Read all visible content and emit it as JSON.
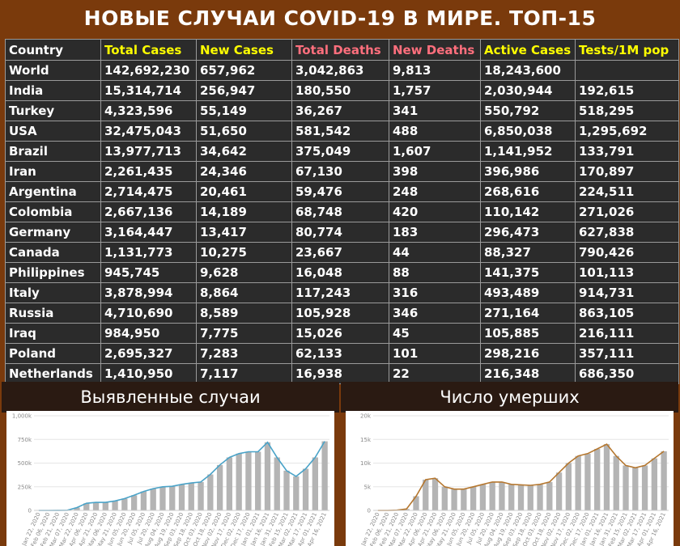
{
  "title": "НОВЫЕ СЛУЧАИ COVID-19 В МИРЕ. ТОП-15",
  "colors": {
    "background": "#7a3a0c",
    "table_bg": "#2b2b2b",
    "yellow_header": "#ffff00",
    "pink_header": "#ff6f7d",
    "bar": "#b4b4b4",
    "cases_line": "#4aa3c8",
    "deaths_line": "#b5772f"
  },
  "table": {
    "columns": [
      {
        "label": "Country",
        "color": "#ffffff"
      },
      {
        "label": "Total Cases",
        "color": "#ffff00"
      },
      {
        "label": "New Cases",
        "color": "#ffff00"
      },
      {
        "label": "Total Deaths",
        "color": "#ff6f7d"
      },
      {
        "label": "New Deaths",
        "color": "#ff6f7d"
      },
      {
        "label": "Active Cases",
        "color": "#ffff00"
      },
      {
        "label": "Tests/1M pop",
        "color": "#ffff00"
      }
    ],
    "rows": [
      [
        "World",
        "142,692,230",
        "657,962",
        "3,042,863",
        "9,813",
        "18,243,600",
        ""
      ],
      [
        "India",
        "15,314,714",
        "256,947",
        "180,550",
        "1,757",
        "2,030,944",
        "192,615"
      ],
      [
        "Turkey",
        "4,323,596",
        "55,149",
        "36,267",
        "341",
        "550,792",
        "518,295"
      ],
      [
        "USA",
        "32,475,043",
        "51,650",
        "581,542",
        "488",
        "6,850,038",
        "1,295,692"
      ],
      [
        "Brazil",
        "13,977,713",
        "34,642",
        "375,049",
        "1,607",
        "1,141,952",
        "133,791"
      ],
      [
        "Iran",
        "2,261,435",
        "24,346",
        "67,130",
        "398",
        "396,986",
        "170,897"
      ],
      [
        "Argentina",
        "2,714,475",
        "20,461",
        "59,476",
        "248",
        "268,616",
        "224,511"
      ],
      [
        "Colombia",
        "2,667,136",
        "14,189",
        "68,748",
        "420",
        "110,142",
        "271,026"
      ],
      [
        "Germany",
        "3,164,447",
        "13,417",
        "80,774",
        "183",
        "296,473",
        "627,838"
      ],
      [
        "Canada",
        "1,131,773",
        "10,275",
        "23,667",
        "44",
        "88,327",
        "790,426"
      ],
      [
        "Philippines",
        "945,745",
        "9,628",
        "16,048",
        "88",
        "141,375",
        "101,113"
      ],
      [
        "Italy",
        "3,878,994",
        "8,864",
        "117,243",
        "316",
        "493,489",
        "914,731"
      ],
      [
        "Russia",
        "4,710,690",
        "8,589",
        "105,928",
        "346",
        "271,164",
        "863,105"
      ],
      [
        "Iraq",
        "984,950",
        "7,775",
        "15,026",
        "45",
        "105,885",
        "216,111"
      ],
      [
        "Poland",
        "2,695,327",
        "7,283",
        "62,133",
        "101",
        "298,216",
        "357,111"
      ],
      [
        "Netherlands",
        "1,410,950",
        "7,117",
        "16,938",
        "22",
        "216,348",
        "686,350"
      ]
    ]
  },
  "chart_data": [
    {
      "type": "bar",
      "title": "Выявленные случаи",
      "ylim": [
        0,
        1000000
      ],
      "y_ticks": [
        0,
        250000,
        500000,
        750000,
        1000000
      ],
      "y_tick_labels": [
        "0",
        "250k",
        "500k",
        "750k",
        "1,000k"
      ],
      "x_tick_labels": [
        "Jan 22, 2020",
        "Feb 06, 2020",
        "Feb 21, 2020",
        "Mar 07, 2020",
        "Mar 22, 2020",
        "Apr 06, 2020",
        "Apr 21, 2020",
        "May 06, 2020",
        "May 21, 2020",
        "Jun 05, 2020",
        "Jun 20, 2020",
        "Jul 05, 2020",
        "Jul 20, 2020",
        "Aug 04, 2020",
        "Aug 19, 2020",
        "Sep 03, 2020",
        "Sep 18, 2020",
        "Oct 03, 2020",
        "Oct 18, 2020",
        "Nov 02, 2020",
        "Nov 17, 2020",
        "Dec 02, 2020",
        "Dec 17, 2020",
        "Jan 01, 2021",
        "Jan 16, 2021",
        "Jan 31, 2021",
        "Feb 15, 2021",
        "Mar 02, 2021",
        "Mar 17, 2021",
        "Apr 01, 2021",
        "Apr 16, 2021"
      ],
      "values": [
        0,
        0,
        1000,
        2000,
        30000,
        75000,
        85000,
        85000,
        100000,
        125000,
        160000,
        200000,
        230000,
        250000,
        255000,
        275000,
        290000,
        300000,
        380000,
        480000,
        560000,
        600000,
        620000,
        620000,
        720000,
        560000,
        420000,
        360000,
        440000,
        560000,
        730000
      ],
      "series": [
        {
          "values": [
            0,
            0,
            1000,
            2000,
            30000,
            75000,
            85000,
            85000,
            100000,
            125000,
            160000,
            200000,
            230000,
            250000,
            255000,
            275000,
            290000,
            300000,
            380000,
            480000,
            560000,
            600000,
            620000,
            620000,
            720000,
            560000,
            420000,
            360000,
            440000,
            560000,
            730000
          ]
        }
      ]
    },
    {
      "type": "bar",
      "title": "Число умерших",
      "ylim": [
        0,
        20000
      ],
      "y_ticks": [
        0,
        5000,
        10000,
        15000,
        20000
      ],
      "y_tick_labels": [
        "0",
        "5k",
        "10k",
        "15k",
        "20k"
      ],
      "x_tick_labels": [
        "Jan 22, 2020",
        "Feb 06, 2020",
        "Feb 21, 2020",
        "Mar 07, 2020",
        "Mar 22, 2020",
        "Apr 06, 2020",
        "Apr 21, 2020",
        "May 06, 2020",
        "May 21, 2020",
        "Jun 05, 2020",
        "Jun 20, 2020",
        "Jul 05, 2020",
        "Jul 20, 2020",
        "Aug 04, 2020",
        "Aug 19, 2020",
        "Sep 03, 2020",
        "Sep 18, 2020",
        "Oct 03, 2020",
        "Oct 18, 2020",
        "Nov 02, 2020",
        "Nov 17, 2020",
        "Dec 02, 2020",
        "Dec 17, 2020",
        "Jan 01, 2021",
        "Jan 16, 2021",
        "Jan 31, 2021",
        "Feb 15, 2021",
        "Mar 02, 2021",
        "Mar 17, 2021",
        "Apr 01, 2021",
        "Apr 16, 2021"
      ],
      "values": [
        0,
        0,
        50,
        300,
        3000,
        6500,
        6800,
        5000,
        4500,
        4500,
        5000,
        5500,
        6000,
        6000,
        5500,
        5400,
        5300,
        5500,
        6000,
        8000,
        10000,
        11500,
        12000,
        13000,
        14000,
        11500,
        9500,
        9000,
        9500,
        11000,
        12500
      ],
      "series": [
        {
          "values": [
            0,
            0,
            50,
            300,
            3000,
            6500,
            6800,
            5000,
            4500,
            4500,
            5000,
            5500,
            6000,
            6000,
            5500,
            5400,
            5300,
            5500,
            6000,
            8000,
            10000,
            11500,
            12000,
            13000,
            14000,
            11500,
            9500,
            9000,
            9500,
            11000,
            12500
          ]
        }
      ]
    }
  ]
}
